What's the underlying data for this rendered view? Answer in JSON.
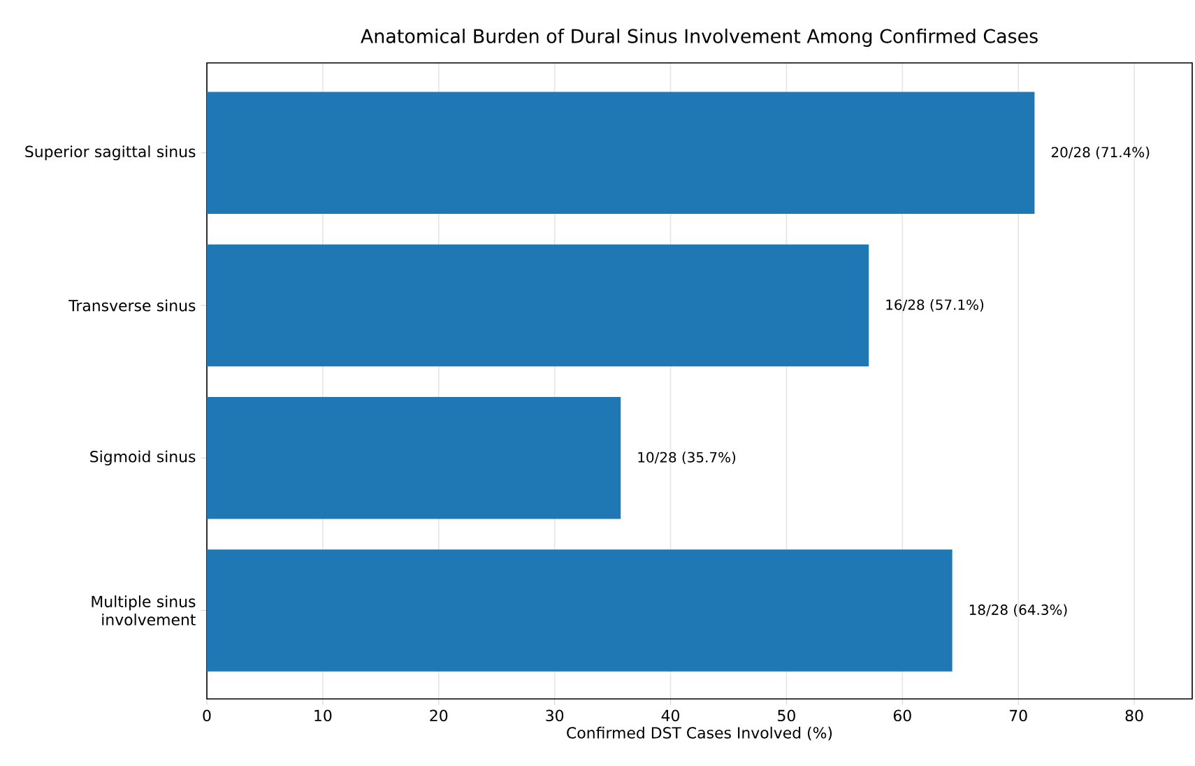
{
  "chart_data": {
    "type": "bar",
    "orientation": "horizontal",
    "title": "Anatomical Burden of Dural Sinus Involvement Among Confirmed Cases",
    "xlabel": "Confirmed DST Cases Involved (%)",
    "categories": [
      "Superior sagittal sinus",
      "Transverse sinus",
      "Sigmoid sinus",
      "Multiple sinus involvement"
    ],
    "values": [
      71.4,
      57.1,
      35.7,
      64.3
    ],
    "value_labels": [
      "20/28 (71.4%)",
      "16/28 (57.1%)",
      "10/28 (35.7%)",
      "18/28 (64.3%)"
    ],
    "color": "#1f77b4",
    "xlim": [
      0,
      85
    ],
    "xticks": [
      0,
      10,
      20,
      30,
      40,
      50,
      60,
      70,
      80
    ],
    "grid": "x"
  }
}
